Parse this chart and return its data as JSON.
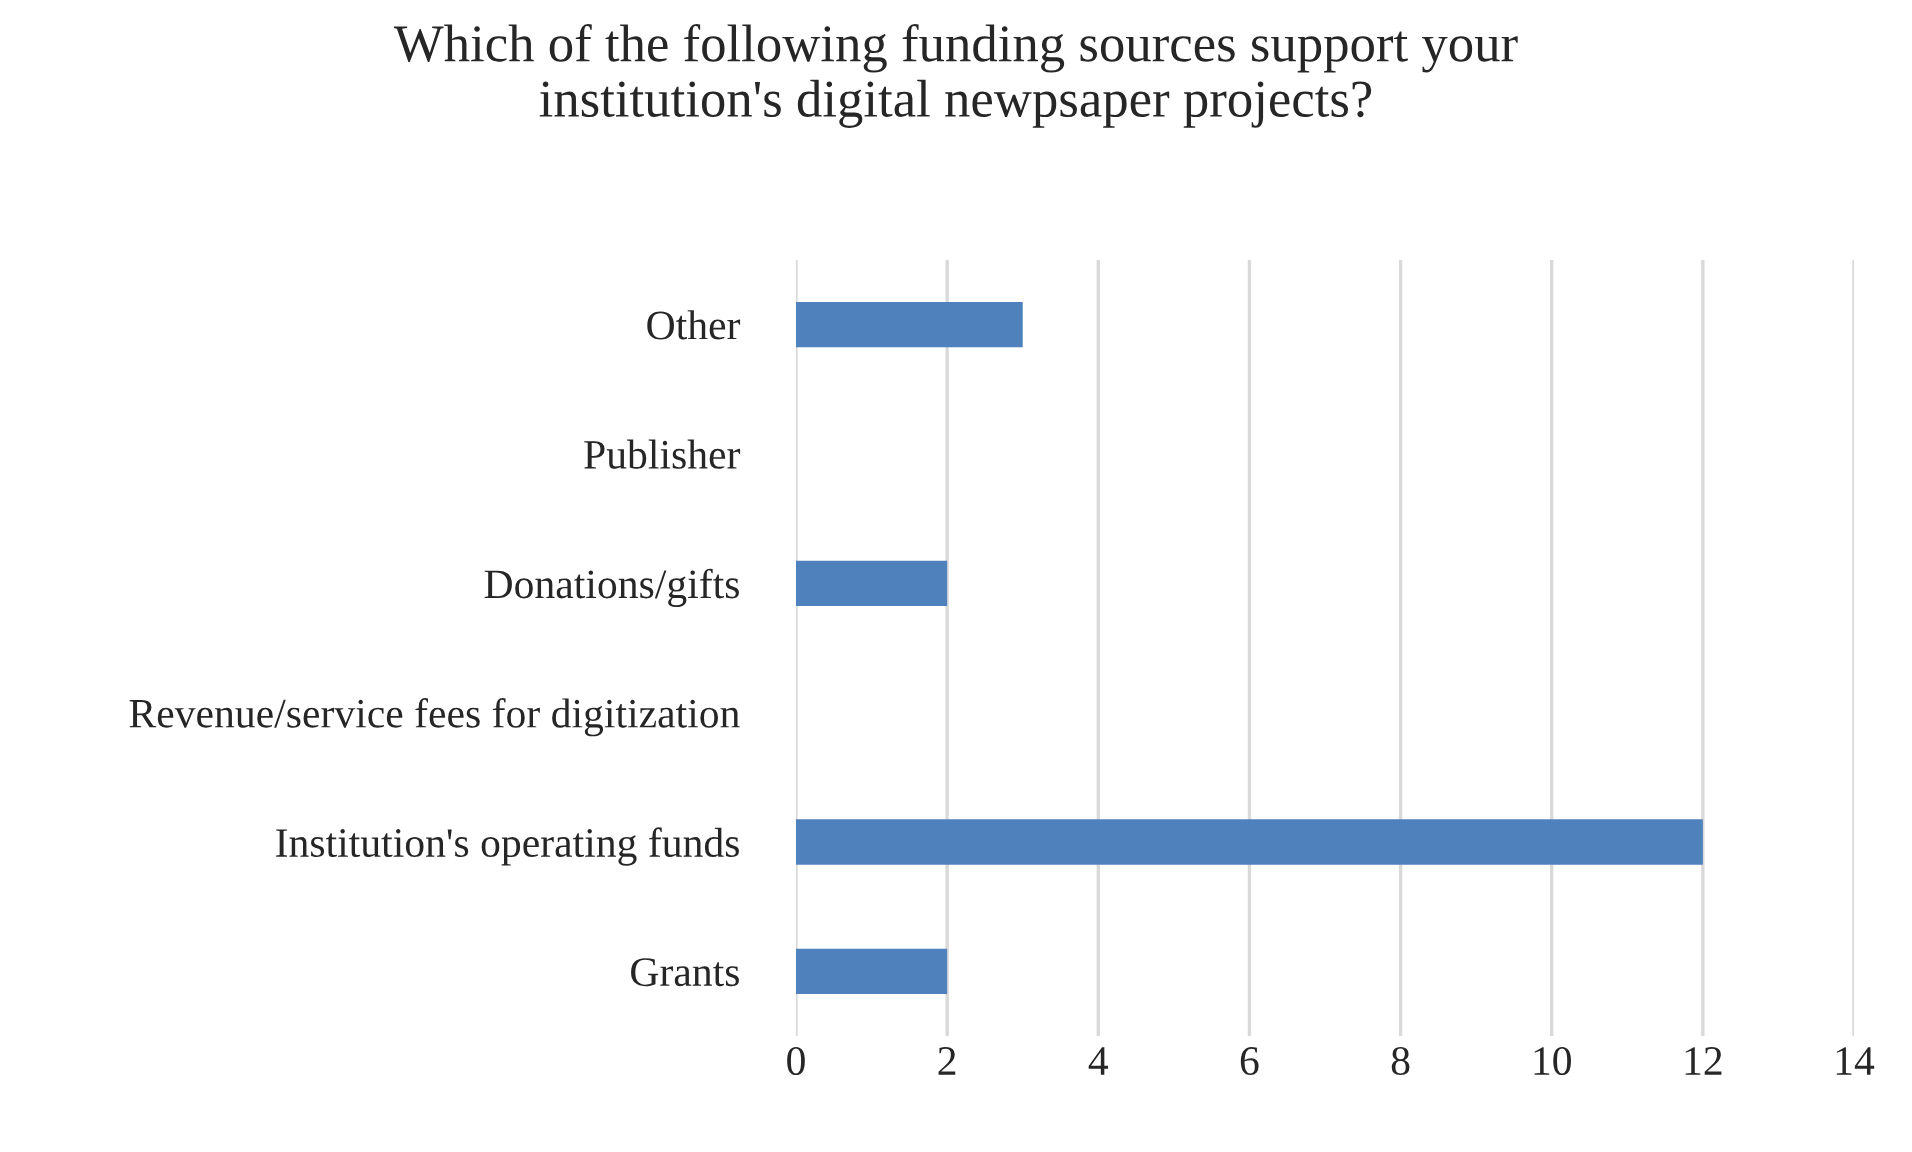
{
  "chart_data": {
    "type": "bar",
    "orientation": "horizontal",
    "title": "Which of the following funding sources support your\ninstitution's digital newpsaper projects?",
    "categories": [
      "Other",
      "Publisher",
      "Donations/gifts",
      "Revenue/service fees for digitization",
      "Institution's operating funds",
      "Grants"
    ],
    "values": [
      3,
      0,
      2,
      0,
      12,
      2
    ],
    "color": "#4f81bd",
    "xlim": [
      0,
      14
    ],
    "xticks": [
      0,
      2,
      4,
      6,
      8,
      10,
      12,
      14
    ],
    "grid": "x"
  }
}
